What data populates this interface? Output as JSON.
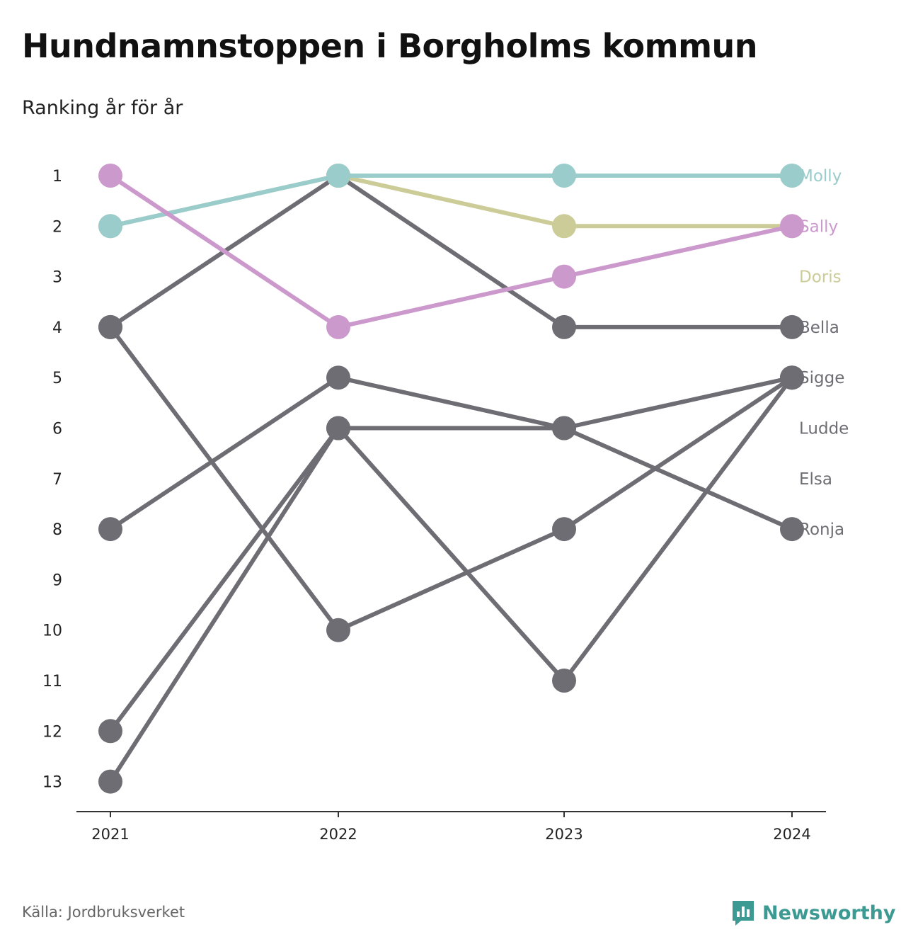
{
  "title": "Hundnamnstoppen i Borgholms kommun",
  "subtitle": "Ranking år för år",
  "source": "Källa: Jordbruksverket",
  "brand": {
    "name": "Newsworthy",
    "icon": "newsworthy-logo-icon",
    "color": "#3d9a92"
  },
  "chart_data": {
    "type": "line",
    "x": [
      "2021",
      "2022",
      "2023",
      "2024"
    ],
    "y_ticks": [
      "1",
      "2",
      "3",
      "4",
      "5",
      "6",
      "7",
      "8",
      "9",
      "10",
      "11",
      "12",
      "13"
    ],
    "ylim": [
      1,
      13
    ],
    "y_inverted": true,
    "grid": false,
    "legend": "end-labels-right",
    "end_labels": [
      {
        "label": "Molly",
        "rank": 1,
        "color": "#99cccb"
      },
      {
        "label": "Sally",
        "rank": 2,
        "color": "#cc99cc"
      },
      {
        "label": "Doris",
        "rank": 3,
        "color": "#cccc99"
      },
      {
        "label": "Bella",
        "rank": 4,
        "color": "#6e6d74"
      },
      {
        "label": "Sigge",
        "rank": 5,
        "color": "#6e6d74"
      },
      {
        "label": "Ludde",
        "rank": 6,
        "color": "#6e6d74"
      },
      {
        "label": "Elsa",
        "rank": 7,
        "color": "#6e6d74"
      },
      {
        "label": "Ronja",
        "rank": 8,
        "color": "#6e6d74"
      }
    ],
    "series": [
      {
        "name": "Bella",
        "color": "#6e6d74",
        "values": [
          4,
          1,
          4,
          4
        ]
      },
      {
        "name": "Sigge",
        "color": "#6e6d74",
        "values": [
          12,
          6,
          6,
          5
        ]
      },
      {
        "name": "Ludde",
        "color": "#6e6d74",
        "values": [
          13,
          6,
          11,
          5
        ]
      },
      {
        "name": "Elsa",
        "color": "#6e6d74",
        "values": [
          4,
          10,
          8,
          5
        ]
      },
      {
        "name": "Ronja",
        "color": "#6e6d74",
        "values": [
          8,
          5,
          6,
          8
        ]
      },
      {
        "name": "Doris",
        "color": "#cccc99",
        "values": [
          2,
          1,
          2,
          2
        ]
      },
      {
        "name": "Molly",
        "color": "#99cccb",
        "values": [
          2,
          1,
          1,
          1
        ]
      },
      {
        "name": "Sally",
        "color": "#cc99cc",
        "values": [
          1,
          4,
          3,
          2
        ]
      }
    ]
  }
}
